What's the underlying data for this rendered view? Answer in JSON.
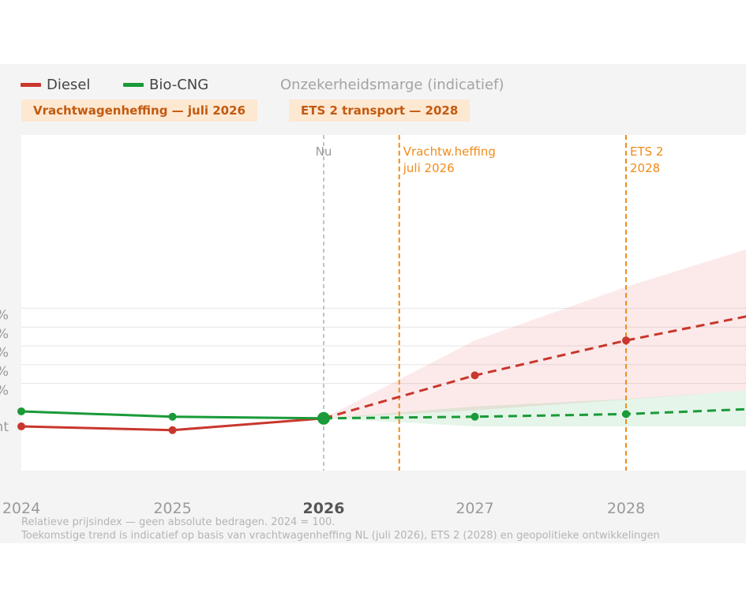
{
  "legend": {
    "diesel": {
      "label": "Diesel",
      "color": "#c8372d"
    },
    "biocng": {
      "label": "Bio-CNG",
      "color": "#1a9a38"
    },
    "uncertainty": {
      "label": "Onzekerheidsmarge (indicatief)"
    }
  },
  "badges": [
    "Vrachtwagenheffing — juli 2026",
    "ETS 2 transport — 2028"
  ],
  "footnotes": [
    "Relatieve prijsindex — geen absolute bedragen. 2024 = 100.",
    "Toekomstige trend is indicatief op basis van vrachtwagenheffing NL (juli 2026), ETS 2 (2028) en geopolitieke ontwikkelingen"
  ],
  "chart_data": {
    "type": "line",
    "title": "",
    "xlabel": "",
    "ylabel": "",
    "x_ticks": [
      "2024",
      "2025",
      "2026",
      "2027",
      "2028"
    ],
    "highlight_tick": "2026",
    "y_tick_labels_visible": [
      "%",
      "%",
      "%",
      "%",
      "%",
      "nt"
    ],
    "xlim": [
      2024,
      2028.8
    ],
    "series": [
      {
        "name": "Diesel",
        "color": "#c8372d",
        "actual": [
          {
            "x": 2024,
            "y": 100
          },
          {
            "x": 2025,
            "y": 99.3
          },
          {
            "x": 2026,
            "y": 101.5
          }
        ],
        "forecast": [
          {
            "x": 2026,
            "y": 101.5
          },
          {
            "x": 2027,
            "y": 109.5
          },
          {
            "x": 2028,
            "y": 116
          },
          {
            "x": 2028.8,
            "y": 120.5
          }
        ],
        "band_upper": [
          {
            "x": 2026,
            "y": 101.5
          },
          {
            "x": 2027,
            "y": 116
          },
          {
            "x": 2028,
            "y": 126
          },
          {
            "x": 2028.8,
            "y": 133
          }
        ],
        "band_lower": [
          {
            "x": 2026,
            "y": 101.5
          },
          {
            "x": 2027,
            "y": 103
          },
          {
            "x": 2028,
            "y": 105
          },
          {
            "x": 2028.8,
            "y": 106.7
          }
        ]
      },
      {
        "name": "Bio-CNG",
        "color": "#1a9a38",
        "actual": [
          {
            "x": 2024,
            "y": 102.8
          },
          {
            "x": 2025,
            "y": 101.8
          },
          {
            "x": 2026,
            "y": 101.5
          }
        ],
        "forecast": [
          {
            "x": 2026,
            "y": 101.5
          },
          {
            "x": 2027,
            "y": 101.8
          },
          {
            "x": 2028,
            "y": 102.3
          },
          {
            "x": 2028.8,
            "y": 103.2
          }
        ],
        "band_upper": [
          {
            "x": 2026,
            "y": 101.5
          },
          {
            "x": 2027,
            "y": 103.7
          },
          {
            "x": 2028,
            "y": 105.1
          },
          {
            "x": 2028.8,
            "y": 106.7
          }
        ],
        "band_lower": [
          {
            "x": 2026,
            "y": 101.5
          },
          {
            "x": 2027,
            "y": 100
          },
          {
            "x": 2028,
            "y": 100
          },
          {
            "x": 2028.8,
            "y": 100
          }
        ]
      }
    ],
    "markers": [
      {
        "x": 2026,
        "label": [
          "Nu"
        ],
        "kind": "now"
      },
      {
        "x": 2026.5,
        "label": [
          "Vrachtw.heffing",
          "juli 2026"
        ],
        "kind": "event"
      },
      {
        "x": 2028,
        "label": [
          "ETS 2",
          "2028"
        ],
        "kind": "event"
      }
    ]
  }
}
